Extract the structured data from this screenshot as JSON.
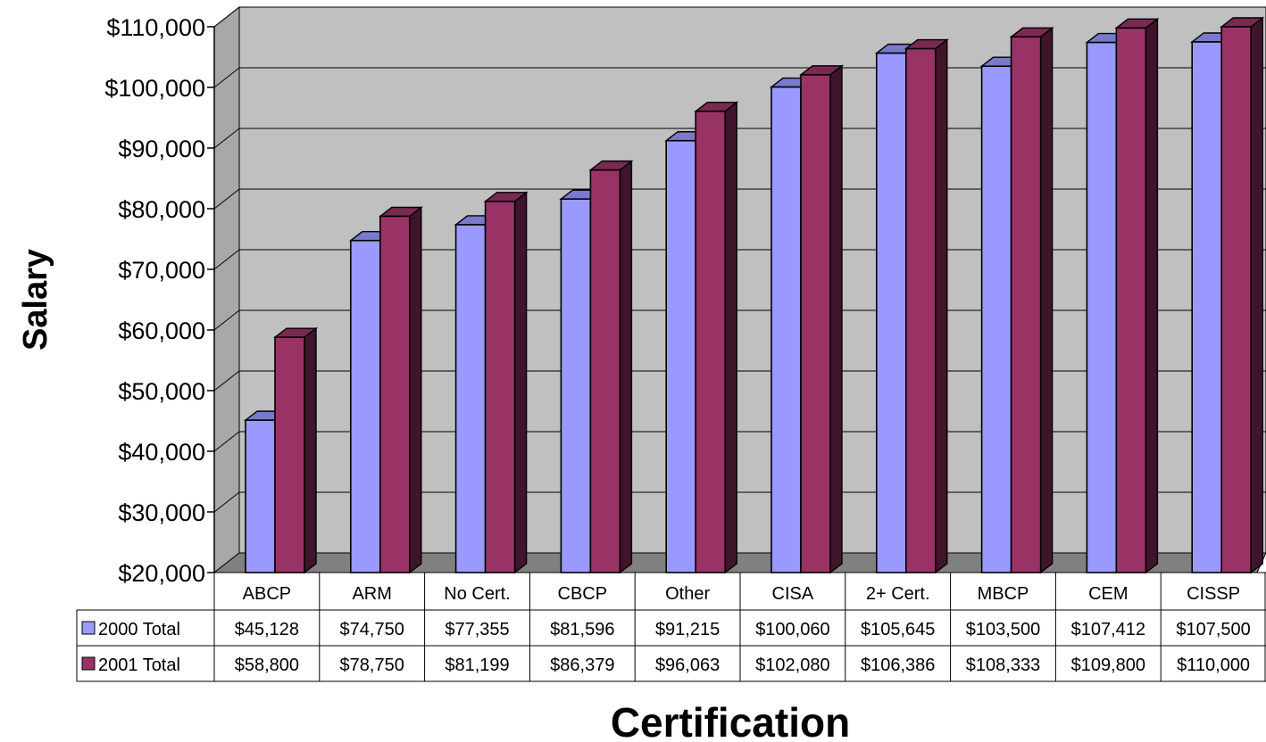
{
  "chart_data": {
    "type": "bar",
    "title": "",
    "xlabel": "Certification",
    "ylabel": "Salary",
    "ylim": [
      20000,
      110000
    ],
    "yticks": [
      20000,
      30000,
      40000,
      50000,
      60000,
      70000,
      80000,
      90000,
      100000,
      110000
    ],
    "ytick_labels": [
      "$20,000",
      "$30,000",
      "$40,000",
      "$50,000",
      "$60,000",
      "$70,000",
      "$80,000",
      "$90,000",
      "$100,000",
      "$110,000"
    ],
    "grid": true,
    "legend": "data-table-left",
    "categories": [
      "ABCP",
      "ARM",
      "No Cert.",
      "CBCP",
      "Other",
      "CISA",
      "2+ Cert.",
      "MBCP",
      "CEM",
      "CISSP"
    ],
    "series": [
      {
        "name": "2000 Total",
        "color": "#9999ff",
        "values": [
          45128,
          74750,
          77355,
          81596,
          91215,
          100060,
          105645,
          103500,
          107412,
          107500
        ],
        "labels": [
          "$45,128",
          "$74,750",
          "$77,355",
          "$81,596",
          "$91,215",
          "$100,060",
          "$105,645",
          "$103,500",
          "$107,412",
          "$107,500"
        ]
      },
      {
        "name": "2001 Total",
        "color": "#993366",
        "values": [
          58800,
          78750,
          81199,
          86379,
          96063,
          102080,
          106386,
          108333,
          109800,
          110000
        ],
        "labels": [
          "$58,800",
          "$78,750",
          "$81,199",
          "$86,379",
          "$96,063",
          "$102,080",
          "$106,386",
          "$108,333",
          "$109,800",
          "$110,000"
        ]
      }
    ],
    "colors": {
      "wall": "#c0c0c0",
      "floor": "#808080",
      "series_2000": "#9999ff",
      "series_2001": "#993366"
    }
  }
}
